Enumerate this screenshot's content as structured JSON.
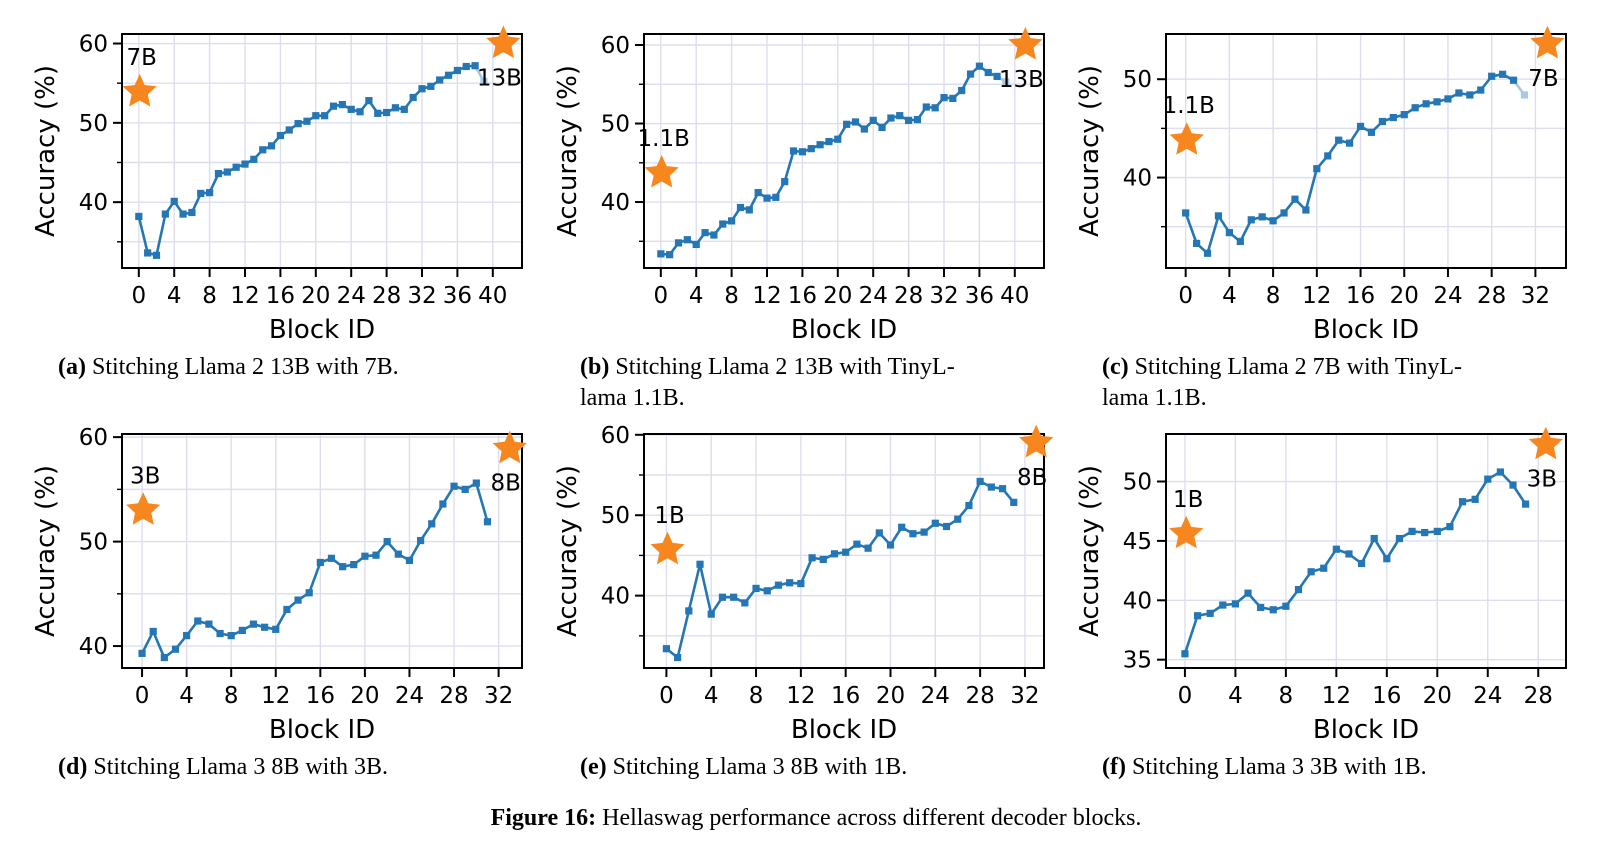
{
  "figure": {
    "caption_label": "Figure 16:",
    "caption_text": "Hellaswag performance across different decoder blocks."
  },
  "colors": {
    "line": "#2477b4",
    "line_light": "#a8c8e4",
    "star": "#f8861e",
    "grid": "#dcdeee",
    "axis": "#000000"
  },
  "chart_data": [
    {
      "key": "a",
      "type": "line",
      "caption_label": "(a)",
      "caption_text": "Stitching Llama 2 13B with 7B.",
      "xlabel": "Block ID",
      "ylabel": "Accuracy (%)",
      "xlim": [
        -1.9,
        43.3
      ],
      "ylim": [
        31.7,
        61.2
      ],
      "xticks": [
        0,
        4,
        8,
        12,
        16,
        20,
        24,
        28,
        32,
        36,
        40
      ],
      "yticks": [
        40,
        50,
        60
      ],
      "grid_step": 5,
      "values": [
        38.2,
        33.6,
        33.3,
        38.5,
        40.1,
        38.5,
        38.7,
        41.1,
        41.2,
        43.6,
        43.8,
        44.4,
        44.8,
        45.4,
        46.6,
        47.1,
        48.4,
        49.1,
        49.9,
        50.2,
        50.9,
        50.9,
        52.1,
        52.3,
        51.7,
        51.4,
        52.8,
        51.2,
        51.3,
        51.9,
        51.7,
        53.2,
        54.3,
        54.6,
        55.4,
        56.0,
        56.6,
        57.1,
        57.2,
        55.2
      ],
      "tail_light": 1,
      "stars": [
        {
          "x": 0.1,
          "y": 53.9,
          "label": "7B",
          "label_pos": "above"
        },
        {
          "x": 41.2,
          "y": 60.0,
          "label": "13B",
          "label_pos": "below"
        }
      ]
    },
    {
      "key": "b",
      "type": "line",
      "caption_label": "(b)",
      "caption_text": "Stitching Llama 2 13B with TinyL-\nlama 1.1B.",
      "xlabel": "Block ID",
      "ylabel": "Accuracy (%)",
      "xlim": [
        -1.9,
        43.3
      ],
      "ylim": [
        31.6,
        61.4
      ],
      "xticks": [
        0,
        4,
        8,
        12,
        16,
        20,
        24,
        28,
        32,
        36,
        40
      ],
      "yticks": [
        40,
        50,
        60
      ],
      "grid_step": 5,
      "values": [
        33.4,
        33.3,
        34.8,
        35.2,
        34.6,
        36.1,
        35.8,
        37.2,
        37.6,
        39.3,
        39.0,
        41.2,
        40.5,
        40.6,
        42.6,
        46.5,
        46.4,
        46.8,
        47.3,
        47.7,
        48.0,
        49.9,
        50.2,
        49.3,
        50.4,
        49.5,
        50.7,
        51.0,
        50.4,
        50.5,
        52.1,
        52.0,
        53.3,
        53.2,
        54.2,
        56.3,
        57.3,
        56.5,
        56.0,
        55.3
      ],
      "tail_light": 1,
      "stars": [
        {
          "x": 0.1,
          "y": 43.7,
          "label": "1.1B",
          "label_pos": "above"
        },
        {
          "x": 41.2,
          "y": 60.0,
          "label": "13B",
          "label_pos": "below"
        }
      ]
    },
    {
      "key": "c",
      "type": "line",
      "caption_label": "(c)",
      "caption_text": "Stitching Llama 2 7B with TinyL-\nlama 1.1B.",
      "xlabel": "Block ID",
      "ylabel": "Accuracy (%)",
      "xlim": [
        -1.8,
        34.8
      ],
      "ylim": [
        30.8,
        54.6
      ],
      "xticks": [
        0,
        4,
        8,
        12,
        16,
        20,
        24,
        28,
        32
      ],
      "yticks": [
        40,
        50
      ],
      "grid_step": 5,
      "values": [
        36.4,
        33.3,
        32.3,
        36.1,
        34.4,
        33.5,
        35.7,
        36.0,
        35.6,
        36.4,
        37.8,
        36.7,
        40.9,
        42.2,
        43.8,
        43.5,
        45.2,
        44.6,
        45.7,
        46.1,
        46.4,
        47.1,
        47.5,
        47.7,
        48.0,
        48.6,
        48.4,
        48.9,
        50.3,
        50.5,
        49.9,
        48.4
      ],
      "tail_light": 1,
      "stars": [
        {
          "x": 0.1,
          "y": 43.8,
          "label": "1.1B",
          "label_pos": "above"
        },
        {
          "x": 33.1,
          "y": 53.6,
          "label": "7B",
          "label_pos": "below"
        }
      ]
    },
    {
      "key": "d",
      "type": "line",
      "caption_label": "(d)",
      "caption_text": "Stitching Llama 3 8B with 3B.",
      "xlabel": "Block ID",
      "ylabel": "Accuracy (%)",
      "xlim": [
        -1.8,
        34.1
      ],
      "ylim": [
        37.9,
        60.3
      ],
      "xticks": [
        0,
        4,
        8,
        12,
        16,
        20,
        24,
        28,
        32
      ],
      "yticks": [
        40,
        50,
        60
      ],
      "grid_step": 5,
      "values": [
        39.3,
        41.4,
        38.9,
        39.7,
        41.0,
        42.4,
        42.1,
        41.2,
        41.0,
        41.5,
        42.1,
        41.8,
        41.6,
        43.5,
        44.4,
        45.1,
        48.0,
        48.4,
        47.6,
        47.8,
        48.6,
        48.7,
        50.0,
        48.8,
        48.2,
        50.1,
        51.7,
        53.6,
        55.3,
        55.0,
        55.6,
        51.9
      ],
      "tail_light": 0,
      "stars": [
        {
          "x": 0.1,
          "y": 53.0,
          "label": "3B",
          "label_pos": "above"
        },
        {
          "x": 33.0,
          "y": 58.9,
          "label": "8B",
          "label_pos": "below"
        }
      ]
    },
    {
      "key": "e",
      "type": "line",
      "caption_label": "(e)",
      "caption_text": "Stitching Llama 3 8B with 1B.",
      "xlabel": "Block ID",
      "ylabel": "Accuracy (%)",
      "xlim": [
        -2.0,
        33.7
      ],
      "ylim": [
        31.0,
        60.1
      ],
      "xticks": [
        0,
        4,
        8,
        12,
        16,
        20,
        24,
        28,
        32
      ],
      "yticks": [
        40,
        50,
        60
      ],
      "grid_step": 5,
      "values": [
        33.4,
        32.3,
        38.1,
        43.9,
        37.7,
        39.8,
        39.8,
        39.1,
        40.9,
        40.6,
        41.3,
        41.6,
        41.5,
        44.7,
        44.5,
        45.2,
        45.4,
        46.4,
        45.9,
        47.8,
        46.3,
        48.5,
        47.7,
        47.9,
        49.0,
        48.6,
        49.5,
        51.2,
        54.2,
        53.5,
        53.3,
        51.6
      ],
      "tail_light": 0,
      "stars": [
        {
          "x": 0.1,
          "y": 45.7,
          "label": "1B",
          "label_pos": "above"
        },
        {
          "x": 33.0,
          "y": 59.0,
          "label": "8B",
          "label_pos": "below"
        }
      ]
    },
    {
      "key": "f",
      "type": "line",
      "caption_label": "(f)",
      "caption_text": "Stitching Llama 3 3B with 1B.",
      "xlabel": "Block ID",
      "ylabel": "Accuracy (%)",
      "xlim": [
        -1.5,
        30.2
      ],
      "ylim": [
        34.3,
        54.0
      ],
      "xticks": [
        0,
        4,
        8,
        12,
        16,
        20,
        24,
        28
      ],
      "yticks": [
        35,
        40,
        45,
        50
      ],
      "grid_step": 5,
      "values": [
        35.5,
        38.7,
        38.9,
        39.6,
        39.7,
        40.6,
        39.4,
        39.2,
        39.5,
        40.9,
        42.4,
        42.7,
        44.3,
        43.9,
        43.1,
        45.2,
        43.5,
        45.2,
        45.8,
        45.7,
        45.8,
        46.2,
        48.3,
        48.5,
        50.2,
        50.8,
        49.7,
        48.1
      ],
      "tail_light": 0,
      "stars": [
        {
          "x": 0.1,
          "y": 45.6,
          "label": "1B",
          "label_pos": "above"
        },
        {
          "x": 28.6,
          "y": 53.1,
          "label": "3B",
          "label_pos": "below"
        }
      ]
    }
  ]
}
